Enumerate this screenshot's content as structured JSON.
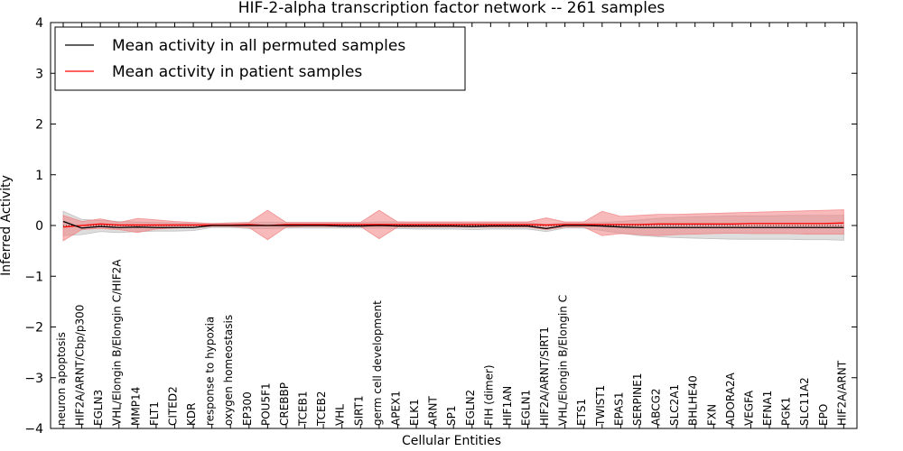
{
  "chart_data": {
    "type": "line",
    "title": "HIF-2-alpha transcription factor network -- 261 samples",
    "xlabel": "Cellular Entities",
    "ylabel": "Inferred Activity",
    "ylim": [
      -4,
      4
    ],
    "yticks": [
      -4,
      -3,
      -2,
      -1,
      0,
      1,
      2,
      3,
      4
    ],
    "ytick_labels": [
      "−4",
      "−3",
      "−2",
      "−1",
      "0",
      "1",
      "2",
      "3",
      "4"
    ],
    "grid": false,
    "legend_position": "top-left",
    "categories": [
      "neuron apoptosis",
      "HIF2A/ARNT/Cbp/p300",
      "EGLN3",
      "VHL/Elongin B/Elongin C/HIF2A",
      "MMP14",
      "FLT1",
      "CITED2",
      "KDR",
      "response to hypoxia",
      "oxygen homeostasis",
      "EP300",
      "POU5F1",
      "CREBBP",
      "TCEB1",
      "TCEB2",
      "VHL",
      "SIRT1",
      "germ cell development",
      "APEX1",
      "ELK1",
      "ARNT",
      "SP1",
      "EGLN2",
      "FIH (dimer)",
      "HIF1AN",
      "EGLN1",
      "HIF2A/ARNT/SIRT1",
      "VHL/Elongin B/Elongin C",
      "ETS1",
      "TWIST1",
      "EPAS1",
      "SERPINE1",
      "ABCG2",
      "SLC2A1",
      "BHLHE40",
      "FXN",
      "ADORA2A",
      "VEGFA",
      "EFNA1",
      "PGK1",
      "SLC11A2",
      "EPO",
      "HIF2A/ARNT"
    ],
    "series": [
      {
        "name": "Mean activity in all permuted samples",
        "color": "#000000",
        "values": [
          0.08,
          -0.05,
          -0.02,
          -0.04,
          -0.03,
          -0.04,
          -0.04,
          -0.04,
          0.0,
          0.0,
          0.0,
          0.0,
          0.0,
          0.0,
          0.0,
          -0.01,
          -0.01,
          0.0,
          -0.01,
          -0.01,
          -0.01,
          -0.01,
          -0.02,
          -0.01,
          -0.01,
          -0.01,
          -0.06,
          0.0,
          0.0,
          -0.01,
          -0.03,
          -0.04,
          -0.04,
          -0.04,
          -0.04,
          -0.04,
          -0.04,
          -0.04,
          -0.04,
          -0.04,
          -0.04,
          -0.04,
          -0.04
        ],
        "band_low": [
          -0.2,
          -0.18,
          -0.12,
          -0.14,
          -0.12,
          -0.11,
          -0.11,
          -0.1,
          -0.04,
          -0.04,
          -0.06,
          -0.06,
          -0.05,
          -0.05,
          -0.05,
          -0.05,
          -0.05,
          -0.05,
          -0.06,
          -0.07,
          -0.07,
          -0.07,
          -0.08,
          -0.07,
          -0.07,
          -0.07,
          -0.12,
          -0.05,
          -0.05,
          -0.1,
          -0.15,
          -0.2,
          -0.22,
          -0.24,
          -0.25,
          -0.26,
          -0.27,
          -0.27,
          -0.27,
          -0.27,
          -0.28,
          -0.28,
          -0.29
        ],
        "band_high": [
          0.28,
          0.12,
          0.1,
          0.08,
          0.07,
          0.06,
          0.05,
          0.04,
          0.04,
          0.05,
          0.06,
          0.06,
          0.06,
          0.06,
          0.06,
          0.06,
          0.06,
          0.07,
          0.07,
          0.06,
          0.06,
          0.06,
          0.05,
          0.06,
          0.06,
          0.06,
          0.02,
          0.05,
          0.05,
          0.06,
          0.08,
          0.11,
          0.14,
          0.16,
          0.17,
          0.18,
          0.19,
          0.19,
          0.19,
          0.2,
          0.2,
          0.2,
          0.2
        ]
      },
      {
        "name": "Mean activity in patient samples",
        "color": "#ff0000",
        "values": [
          -0.03,
          0.0,
          0.03,
          0.01,
          0.01,
          0.01,
          0.01,
          0.01,
          0.01,
          0.01,
          0.02,
          0.0,
          0.02,
          0.02,
          0.02,
          0.02,
          0.02,
          0.02,
          0.02,
          0.02,
          0.02,
          0.02,
          0.02,
          0.02,
          0.02,
          0.02,
          0.01,
          0.02,
          0.02,
          0.02,
          0.02,
          0.02,
          0.03,
          0.03,
          0.03,
          0.03,
          0.03,
          0.04,
          0.04,
          0.04,
          0.04,
          0.04,
          0.05
        ],
        "band_low": [
          -0.3,
          -0.08,
          -0.06,
          -0.08,
          -0.14,
          -0.07,
          -0.05,
          -0.04,
          -0.02,
          -0.02,
          -0.04,
          -0.28,
          -0.03,
          -0.02,
          -0.02,
          -0.02,
          -0.02,
          -0.26,
          -0.03,
          -0.03,
          -0.03,
          -0.03,
          -0.03,
          -0.03,
          -0.03,
          -0.03,
          -0.08,
          -0.03,
          -0.03,
          -0.2,
          -0.16,
          -0.18,
          -0.2,
          -0.18,
          -0.17,
          -0.16,
          -0.15,
          -0.16,
          -0.16,
          -0.16,
          -0.17,
          -0.17,
          -0.17
        ],
        "band_high": [
          0.2,
          0.08,
          0.13,
          0.06,
          0.14,
          0.11,
          0.08,
          0.06,
          0.04,
          0.05,
          0.06,
          0.3,
          0.06,
          0.06,
          0.06,
          0.06,
          0.06,
          0.3,
          0.07,
          0.07,
          0.07,
          0.07,
          0.07,
          0.07,
          0.07,
          0.07,
          0.15,
          0.07,
          0.07,
          0.28,
          0.18,
          0.2,
          0.22,
          0.22,
          0.23,
          0.24,
          0.25,
          0.26,
          0.27,
          0.28,
          0.29,
          0.3,
          0.31
        ]
      }
    ]
  }
}
